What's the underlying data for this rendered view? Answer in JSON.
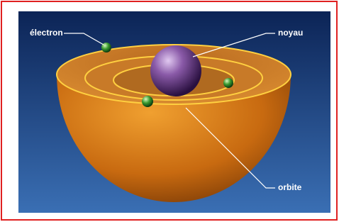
{
  "labels": {
    "electron": "électron",
    "nucleus": "noyau",
    "orbit": "orbite"
  }
}
